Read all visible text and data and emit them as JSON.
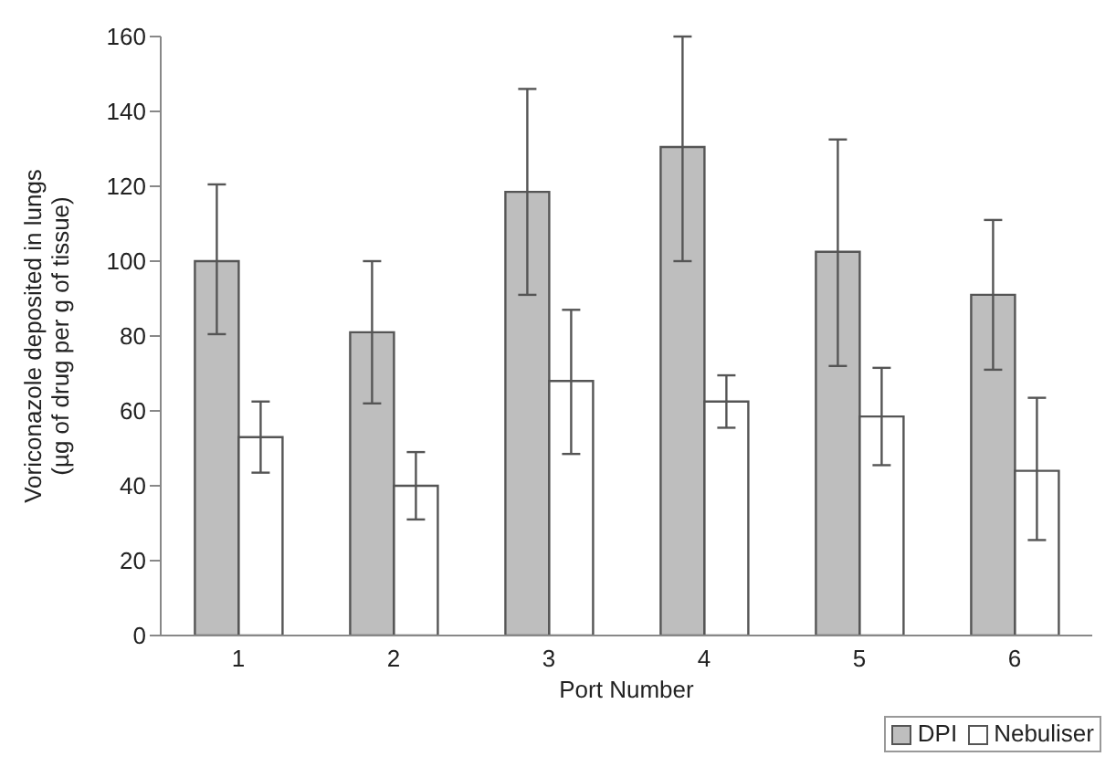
{
  "chart_data": {
    "type": "bar",
    "xlabel": "Port Number",
    "ylabel": "Voriconazole deposited in lungs\n(µg of drug per g of tissue)",
    "categories": [
      "1",
      "2",
      "3",
      "4",
      "5",
      "6"
    ],
    "series": [
      {
        "name": "DPI",
        "color": "#bebebe",
        "values": [
          100,
          81,
          118.5,
          130.5,
          102.5,
          91
        ],
        "errors": [
          [
            80.5,
            120.5
          ],
          [
            62,
            100
          ],
          [
            91,
            146
          ],
          [
            100,
            160
          ],
          [
            72,
            132.5
          ],
          [
            71,
            111
          ]
        ]
      },
      {
        "name": "Nebuliser",
        "color": "#ffffff",
        "values": [
          53,
          40,
          68,
          62.5,
          58.5,
          44
        ],
        "errors": [
          [
            43.5,
            62.5
          ],
          [
            31,
            49
          ],
          [
            48.5,
            87
          ],
          [
            55.5,
            69.5
          ],
          [
            45.5,
            71.5
          ],
          [
            25.5,
            63.5
          ]
        ]
      }
    ],
    "ylim": [
      0,
      160
    ],
    "yticks": [
      0,
      20,
      40,
      60,
      80,
      100,
      120,
      140,
      160
    ],
    "grid": false,
    "legend": "bottom right"
  }
}
